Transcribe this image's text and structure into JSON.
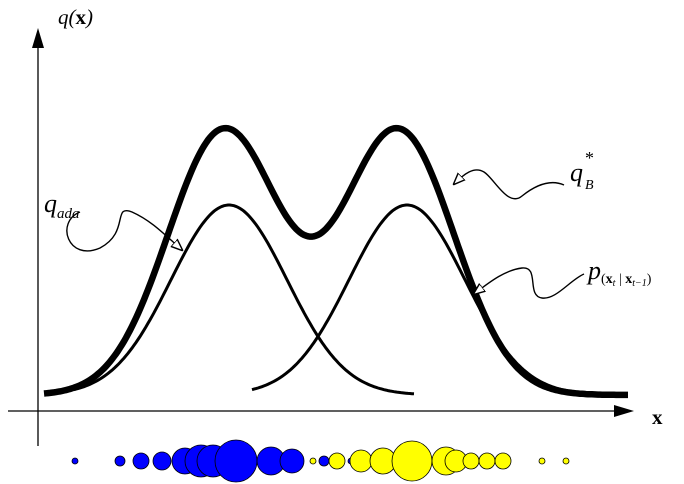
{
  "axes": {
    "y_label_func": "q(",
    "y_label_var": "x",
    "y_label_close": ")",
    "x_label": "x"
  },
  "labels": {
    "q_ada": {
      "base": "q",
      "sub": "ada"
    },
    "q_b_star": {
      "base": "q",
      "sub": "B",
      "sup": "*"
    },
    "p_transition": {
      "base": "p",
      "open": "(",
      "var1": "x",
      "sub1": "t",
      "sep": " | ",
      "var2": "x",
      "sub2": "t−1",
      "close": ")"
    }
  },
  "colors": {
    "curve": "#000000",
    "left_particles": "#0000ff",
    "right_particles": "#ffff00"
  },
  "particles": {
    "left_color": "blue",
    "right_color": "yellow"
  }
}
